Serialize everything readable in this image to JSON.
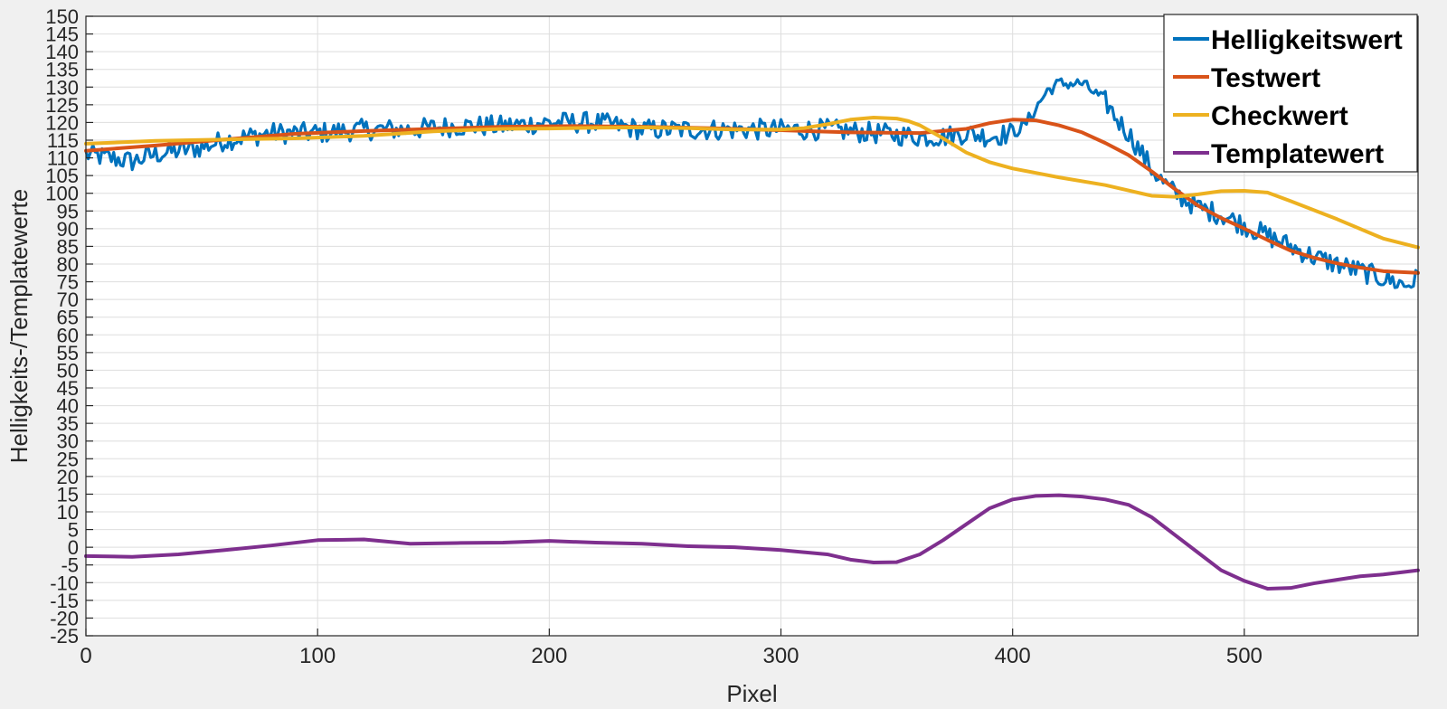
{
  "chart_data": {
    "type": "line",
    "title": "",
    "xlabel": "Pixel",
    "ylabel": "Helligkeits-/Templatewerte",
    "xlim": [
      0,
      575
    ],
    "ylim": [
      -25,
      150
    ],
    "x_ticks": [
      0,
      100,
      200,
      300,
      400,
      500
    ],
    "y_ticks": [
      -25,
      -20,
      -15,
      -10,
      -5,
      0,
      5,
      10,
      15,
      20,
      25,
      30,
      35,
      40,
      45,
      50,
      55,
      60,
      65,
      70,
      75,
      80,
      85,
      90,
      95,
      100,
      105,
      110,
      115,
      120,
      125,
      130,
      135,
      140,
      145,
      150
    ],
    "grid": true,
    "legend_position": "top-right",
    "series": [
      {
        "name": "Helligkeitswert",
        "color": "#0072bd",
        "noisy": true,
        "x": [
          0,
          10,
          20,
          30,
          40,
          50,
          60,
          70,
          80,
          90,
          100,
          120,
          140,
          160,
          180,
          200,
          220,
          240,
          260,
          280,
          300,
          320,
          340,
          360,
          370,
          380,
          390,
          400,
          405,
          410,
          415,
          420,
          430,
          440,
          445,
          450,
          455,
          460,
          465,
          470,
          480,
          490,
          500,
          510,
          520,
          530,
          540,
          550,
          560,
          570,
          575
        ],
        "values": [
          111,
          110,
          109,
          111,
          112,
          113,
          115,
          116,
          117,
          117,
          117,
          118,
          118,
          119,
          119,
          120,
          120,
          118,
          118,
          118,
          118,
          118,
          117,
          116,
          116,
          117,
          116,
          117,
          119,
          124,
          129,
          131,
          131,
          126,
          121,
          117,
          112,
          107,
          103,
          100,
          96,
          94,
          91,
          88,
          85,
          82,
          80,
          78,
          76,
          74,
          76
        ]
      },
      {
        "name": "Testwert",
        "color": "#d95319",
        "x": [
          0,
          30,
          60,
          90,
          120,
          150,
          180,
          210,
          240,
          270,
          300,
          330,
          360,
          380,
          390,
          400,
          410,
          420,
          430,
          440,
          450,
          460,
          470,
          480,
          490,
          500,
          510,
          520,
          530,
          540,
          550,
          560,
          575
        ],
        "values": [
          112,
          113.5,
          115.2,
          116.8,
          117.6,
          118.2,
          118.8,
          119,
          118.8,
          118.4,
          117.8,
          117.2,
          117,
          118.2,
          119.8,
          120.8,
          120.6,
          119.2,
          117.2,
          114.2,
          110.8,
          106.2,
          101.2,
          96.5,
          93,
          90,
          86.8,
          83.8,
          81.8,
          80.2,
          79,
          78,
          77.5
        ]
      },
      {
        "name": "Checkwert",
        "color": "#edb120",
        "x": [
          0,
          30,
          60,
          90,
          120,
          150,
          180,
          200,
          220,
          240,
          260,
          280,
          300,
          310,
          320,
          330,
          340,
          350,
          355,
          360,
          370,
          380,
          390,
          400,
          420,
          440,
          460,
          470,
          480,
          490,
          500,
          510,
          520,
          540,
          560,
          575
        ],
        "values": [
          114,
          114.8,
          115.2,
          115.5,
          116.2,
          117.5,
          118.2,
          118.3,
          118.5,
          118.6,
          118.4,
          118,
          118,
          118.4,
          119.5,
          120.8,
          121.4,
          121.1,
          120.4,
          119.2,
          115.5,
          111.5,
          108.8,
          107,
          104.5,
          102.3,
          99.3,
          99,
          99.7,
          100.6,
          100.7,
          100.2,
          97.8,
          92.7,
          87.2,
          84.7
        ]
      },
      {
        "name": "Templatewert",
        "color": "#7e2f8e",
        "x": [
          0,
          20,
          40,
          60,
          80,
          100,
          120,
          140,
          160,
          180,
          200,
          220,
          240,
          260,
          280,
          300,
          320,
          330,
          340,
          350,
          360,
          370,
          380,
          390,
          400,
          410,
          420,
          430,
          440,
          450,
          460,
          470,
          480,
          490,
          500,
          510,
          520,
          530,
          540,
          550,
          560,
          575
        ],
        "values": [
          -2.5,
          -2.7,
          -2,
          -0.8,
          0.5,
          2,
          2.2,
          1,
          1.2,
          1.3,
          1.8,
          1.3,
          1,
          0.3,
          0,
          -0.8,
          -2,
          -3.5,
          -4.3,
          -4.2,
          -2,
          2,
          6.5,
          11,
          13.5,
          14.5,
          14.7,
          14.3,
          13.5,
          12,
          8.5,
          3.5,
          -1.5,
          -6.5,
          -9.5,
          -11.7,
          -11.5,
          -10.2,
          -9.2,
          -8.2,
          -7.7,
          -6.5
        ]
      }
    ]
  }
}
